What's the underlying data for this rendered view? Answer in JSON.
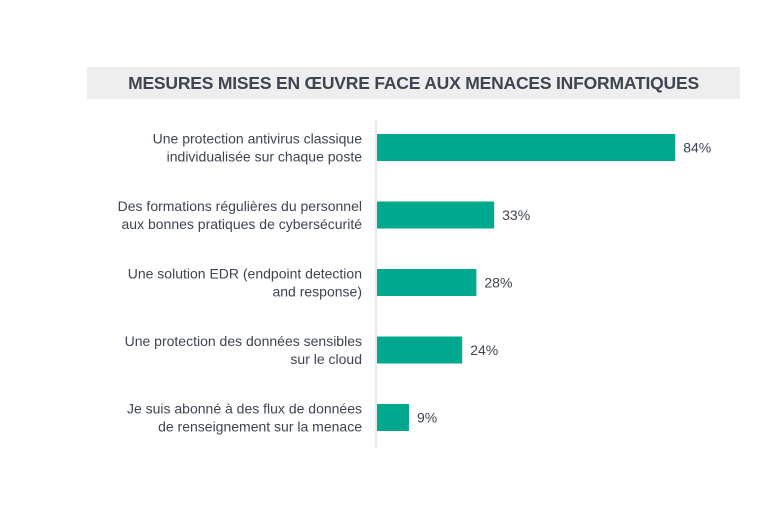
{
  "chart_data": {
    "type": "bar",
    "orientation": "horizontal",
    "title": "MESURES MISES EN ŒUVRE FACE AUX MENACES INFORMATIQUES",
    "categories": [
      [
        "Une protection antivirus classique",
        "individualisée sur chaque poste"
      ],
      [
        "Des formations régulières du personnel",
        "aux bonnes pratiques de cybersécurité"
      ],
      [
        "Une solution EDR (endpoint detection",
        "and response)"
      ],
      [
        "Une protection des données sensibles",
        "sur le cloud"
      ],
      [
        "Je suis abonné à des flux de données",
        "de renseignement sur la menace"
      ]
    ],
    "values": [
      84,
      33,
      28,
      24,
      9
    ],
    "value_labels": [
      "84%",
      "33%",
      "28%",
      "24%",
      "9%"
    ],
    "unit": "%",
    "grid": false,
    "legend": "none",
    "colors": {
      "bar": "#00a88e",
      "text": "#3d4553",
      "axis": "#d0d0d0",
      "title_bg": "#eeeeee"
    }
  }
}
